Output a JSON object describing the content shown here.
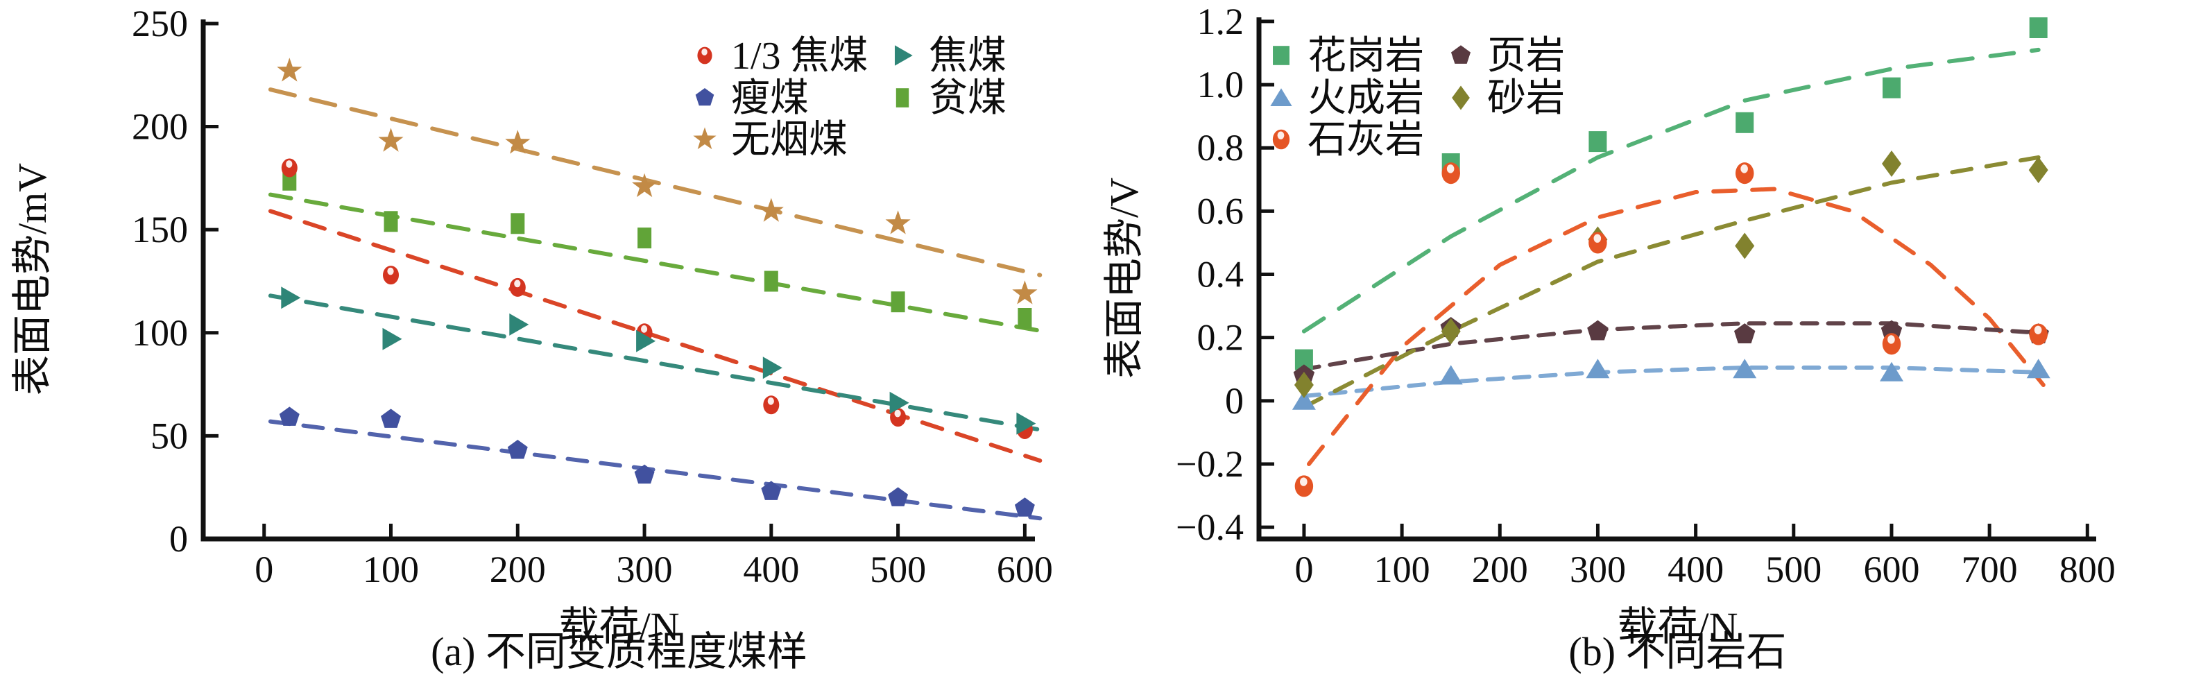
{
  "figure": {
    "background": "#ffffff",
    "description_left_caption": "(a) 不同变质程度煤样",
    "description_right_caption": "(b) 不同岩石"
  },
  "chart_data": [
    {
      "id": "a",
      "type": "scatter",
      "caption": "(a) 不同变质程度煤样",
      "xlabel": "载荷/N",
      "ylabel": "表面电势/mV",
      "xlim": [
        -48,
        608
      ],
      "ylim": [
        0,
        252
      ],
      "grid": false,
      "legend_position": "upper-right-inside",
      "xticks": {
        "values": [
          0,
          100,
          200,
          300,
          400,
          500,
          600
        ],
        "labels": [
          "0",
          "100",
          "200",
          "300",
          "400",
          "500",
          "600"
        ]
      },
      "yticks": {
        "values": [
          0,
          50,
          100,
          150,
          200,
          250
        ],
        "labels": [
          "0",
          "50",
          "100",
          "150",
          "200",
          "250"
        ]
      },
      "legend_rows": [
        [
          0,
          1
        ],
        [
          2,
          3
        ],
        [
          4
        ]
      ],
      "draw_order": [
        3,
        4,
        2,
        0,
        1
      ],
      "series": [
        {
          "name": "1/3 焦煤",
          "marker": "glossy-circle",
          "color": "#d43420",
          "trend_color": "#da4527",
          "dash": "30 22",
          "size": 1,
          "points": [
            [
              20,
              180
            ],
            [
              100,
              128
            ],
            [
              200,
              122
            ],
            [
              300,
              100
            ],
            [
              400,
              65
            ],
            [
              500,
              59
            ],
            [
              600,
              53
            ]
          ],
          "trend": [
            [
              5,
              159
            ],
            [
              612,
              38
            ]
          ]
        },
        {
          "name": "焦煤",
          "marker": "triangle-right",
          "color": "#2e8577",
          "trend_color": "#35897b",
          "dash": "30 22",
          "size": 1,
          "points": [
            [
              20,
              117
            ],
            [
              100,
              97
            ],
            [
              200,
              104
            ],
            [
              300,
              96
            ],
            [
              400,
              83
            ],
            [
              500,
              66
            ],
            [
              600,
              56
            ]
          ],
          "trend": [
            [
              5,
              118
            ],
            [
              612,
              53
            ]
          ]
        },
        {
          "name": "瘦煤",
          "marker": "pentagon",
          "color": "#41519f",
          "trend_color": "#5263ac",
          "dash": "28 20",
          "size": 0.95,
          "points": [
            [
              20,
              59
            ],
            [
              100,
              58
            ],
            [
              200,
              43
            ],
            [
              300,
              31
            ],
            [
              400,
              23
            ],
            [
              500,
              20
            ],
            [
              600,
              15
            ]
          ],
          "trend": [
            [
              5,
              57
            ],
            [
              612,
              10
            ]
          ]
        },
        {
          "name": "贫煤",
          "marker": "rect",
          "color": "#61a438",
          "trend_color": "#68aa3c",
          "dash": "30 22",
          "size": 1,
          "points": [
            [
              20,
              174
            ],
            [
              100,
              154
            ],
            [
              200,
              153
            ],
            [
              300,
              146
            ],
            [
              400,
              125
            ],
            [
              500,
              115
            ],
            [
              600,
              107
            ]
          ],
          "trend": [
            [
              5,
              167
            ],
            [
              612,
              101
            ]
          ]
        },
        {
          "name": "无烟煤",
          "marker": "star",
          "color": "#c28a46",
          "trend_color": "#c6924f",
          "dash": "36 24",
          "size": 1,
          "points": [
            [
              20,
              227
            ],
            [
              100,
              193
            ],
            [
              200,
              192
            ],
            [
              300,
              171
            ],
            [
              400,
              159
            ],
            [
              500,
              153
            ],
            [
              600,
              119
            ]
          ],
          "trend": [
            [
              5,
              218
            ],
            [
              612,
              128
            ]
          ]
        }
      ]
    },
    {
      "id": "b",
      "type": "scatter",
      "caption": "(b) 不同岩石",
      "xlabel": "载荷/N",
      "ylabel": "表面电势/V",
      "xlim": [
        -46,
        809
      ],
      "ylim": [
        -0.437,
        1.213
      ],
      "grid": false,
      "legend_position": "upper-left-inside",
      "xticks": {
        "values": [
          0,
          100,
          200,
          300,
          400,
          500,
          600,
          700,
          800
        ],
        "labels": [
          "0",
          "100",
          "200",
          "300",
          "400",
          "500",
          "600",
          "700",
          "800"
        ]
      },
      "yticks": {
        "values": [
          -0.4,
          -0.2,
          0,
          0.2,
          0.4,
          0.6,
          0.8,
          1.0,
          1.2
        ],
        "labels": [
          "−0.4",
          "−0.2",
          "0",
          "0.2",
          "0.4",
          "0.6",
          "0.8",
          "1.0",
          "1.2"
        ]
      },
      "legend_rows": [
        [
          0,
          3
        ],
        [
          1,
          4
        ],
        [
          2
        ]
      ],
      "draw_order": [
        0,
        1,
        3,
        4,
        2
      ],
      "series": [
        {
          "name": "花岗岩",
          "marker": "square",
          "color": "#4caa6e",
          "trend_color": "#53b176",
          "dash": "34 26",
          "size": 1,
          "points": [
            [
              0,
              0.13
            ],
            [
              150,
              0.75
            ],
            [
              300,
              0.82
            ],
            [
              450,
              0.88
            ],
            [
              600,
              0.99
            ],
            [
              750,
              1.18
            ]
          ],
          "trend": [
            [
              0,
              0.22
            ],
            [
              150,
              0.52
            ],
            [
              300,
              0.77
            ],
            [
              450,
              0.95
            ],
            [
              600,
              1.05
            ],
            [
              750,
              1.11
            ]
          ]
        },
        {
          "name": "火成岩",
          "marker": "triangle-up",
          "color": "#6d9bcb",
          "trend_color": "#7fa9d4",
          "dash": "22 16",
          "size": 1,
          "points": [
            [
              0,
              0.0
            ],
            [
              150,
              0.08
            ],
            [
              300,
              0.1
            ],
            [
              450,
              0.1
            ],
            [
              600,
              0.09
            ],
            [
              750,
              0.1
            ]
          ],
          "trend": [
            [
              0,
              0.015
            ],
            [
              150,
              0.06
            ],
            [
              300,
              0.09
            ],
            [
              450,
              0.105
            ],
            [
              600,
              0.105
            ],
            [
              750,
              0.09
            ]
          ]
        },
        {
          "name": "石灰岩",
          "marker": "glossy-circle",
          "color": "#e55424",
          "trend_color": "#e95e2c",
          "dash": "32 24",
          "size": 1.15,
          "points": [
            [
              0,
              -0.27
            ],
            [
              150,
              0.72
            ],
            [
              300,
              0.5
            ],
            [
              450,
              0.72
            ],
            [
              600,
              0.18
            ],
            [
              750,
              0.21
            ]
          ],
          "trend": [
            [
              5,
              -0.2
            ],
            [
              100,
              0.17
            ],
            [
              200,
              0.43
            ],
            [
              300,
              0.58
            ],
            [
              400,
              0.66
            ],
            [
              480,
              0.67
            ],
            [
              560,
              0.6
            ],
            [
              640,
              0.43
            ],
            [
              700,
              0.26
            ],
            [
              755,
              0.05
            ]
          ]
        },
        {
          "name": "页岩",
          "marker": "pentagon",
          "color": "#593a41",
          "trend_color": "#614349",
          "dash": "22 16",
          "size": 1,
          "points": [
            [
              0,
              0.08
            ],
            [
              150,
              0.23
            ],
            [
              300,
              0.22
            ],
            [
              450,
              0.21
            ],
            [
              600,
              0.22
            ],
            [
              750,
              0.21
            ]
          ],
          "trend": [
            [
              0,
              0.1
            ],
            [
              150,
              0.18
            ],
            [
              300,
              0.225
            ],
            [
              450,
              0.245
            ],
            [
              600,
              0.245
            ],
            [
              750,
              0.215
            ]
          ]
        },
        {
          "name": "砂岩",
          "marker": "diamond",
          "color": "#82822e",
          "trend_color": "#8b8b33",
          "dash": "28 22",
          "size": 1,
          "points": [
            [
              0,
              0.05
            ],
            [
              150,
              0.22
            ],
            [
              300,
              0.51
            ],
            [
              450,
              0.49
            ],
            [
              600,
              0.75
            ],
            [
              750,
              0.73
            ]
          ],
          "trend": [
            [
              0,
              -0.02
            ],
            [
              150,
              0.22
            ],
            [
              300,
              0.44
            ],
            [
              450,
              0.57
            ],
            [
              600,
              0.69
            ],
            [
              750,
              0.77
            ]
          ]
        }
      ]
    }
  ]
}
